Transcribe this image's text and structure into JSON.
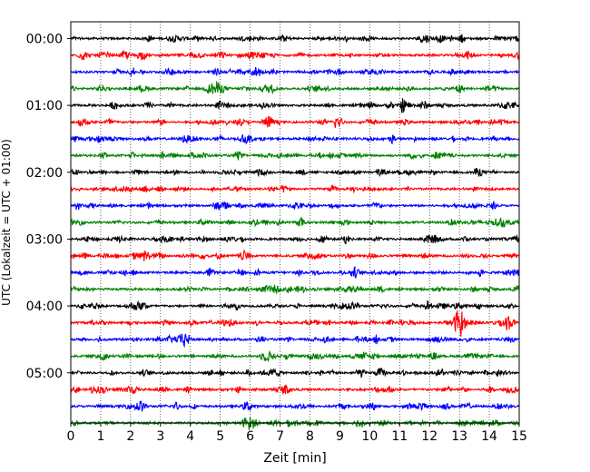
{
  "chart_data": {
    "type": "line",
    "title": "",
    "xlabel": "Zeit  [min]",
    "ylabel": "UTC (Lokalzeit = UTC + 01:00)",
    "xlim": [
      0,
      15
    ],
    "x_ticks": [
      0,
      1,
      2,
      3,
      4,
      5,
      6,
      7,
      8,
      9,
      10,
      11,
      12,
      13,
      14,
      15
    ],
    "x_tick_labels": [
      "0",
      "1",
      "2",
      "3",
      "4",
      "5",
      "6",
      "7",
      "8",
      "9",
      "10",
      "11",
      "12",
      "13",
      "14",
      "15"
    ],
    "ylim": [
      -345,
      15
    ],
    "y_ticks": [
      0,
      -60,
      -120,
      -180,
      -240,
      -300
    ],
    "y_tick_labels": [
      "00:00",
      "01:00",
      "02:00",
      "03:00",
      "04:00",
      "05:00"
    ],
    "grid": "vertical dotted lines at each minute",
    "line_interval_minutes": 15,
    "line_count": 24,
    "colors": [
      "#000000",
      "#ff0000",
      "#0000ff",
      "#008000"
    ],
    "events": [
      {
        "line": 0,
        "x": 11.8,
        "amp": 0.9
      },
      {
        "line": 1,
        "x": 4.2,
        "amp": 0.5
      },
      {
        "line": 2,
        "x": 6.2,
        "amp": 0.9
      },
      {
        "line": 2,
        "x": 4.9,
        "amp": 0.6
      },
      {
        "line": 3,
        "x": 4.8,
        "amp": 0.9
      },
      {
        "line": 4,
        "x": 1.5,
        "amp": 0.9
      },
      {
        "line": 5,
        "x": 6.6,
        "amp": 0.9
      },
      {
        "line": 5,
        "x": 10.1,
        "amp": 0.5
      },
      {
        "line": 6,
        "x": 1.0,
        "amp": 0.6
      },
      {
        "line": 7,
        "x": 4.4,
        "amp": 0.6
      },
      {
        "line": 11,
        "x": 6.5,
        "amp": 0.5
      },
      {
        "line": 12,
        "x": 1.6,
        "amp": 0.6
      },
      {
        "line": 13,
        "x": 5.8,
        "amp": 0.9
      },
      {
        "line": 13,
        "x": 8.0,
        "amp": 1.0
      },
      {
        "line": 14,
        "x": 9.5,
        "amp": 1.0
      },
      {
        "line": 16,
        "x": 9.2,
        "amp": 0.9
      },
      {
        "line": 17,
        "x": 13.0,
        "amp": 3.5
      },
      {
        "line": 17,
        "x": 14.6,
        "amp": 2.0
      },
      {
        "line": 18,
        "x": 3.8,
        "amp": 1.8
      },
      {
        "line": 19,
        "x": 6.5,
        "amp": 0.9
      },
      {
        "line": 20,
        "x": 2.5,
        "amp": 0.6
      },
      {
        "line": 22,
        "x": 2.3,
        "amp": 1.4
      },
      {
        "line": 23,
        "x": 6.0,
        "amp": 1.2
      }
    ]
  }
}
